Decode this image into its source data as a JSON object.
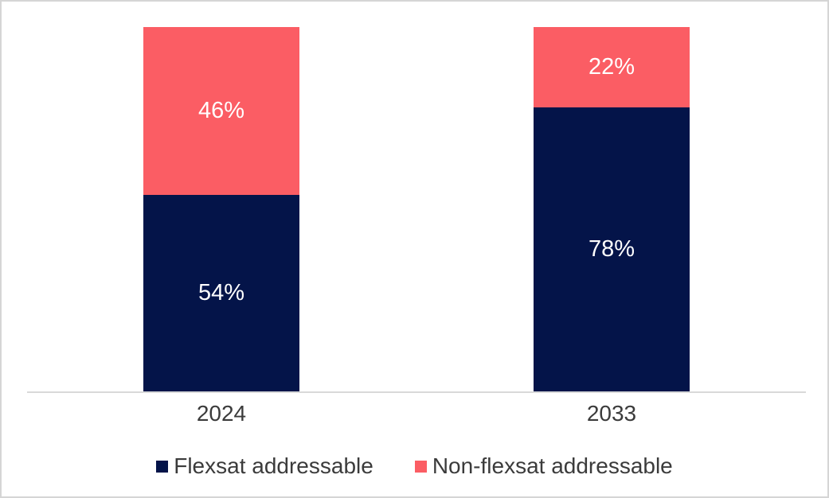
{
  "frame": {
    "background": "#FFFFFF",
    "border_color": "#D5D5D5"
  },
  "chart_data": {
    "type": "bar",
    "stacked": true,
    "orientation": "vertical",
    "title": "",
    "categories": [
      "2024",
      "2033"
    ],
    "series": [
      {
        "name": "Flexsat addressable",
        "color": "#041449",
        "values": [
          54,
          78
        ],
        "labels": [
          "54%",
          "78%"
        ]
      },
      {
        "name": "Non-flexsat addressable",
        "color": "#FB5D64",
        "values": [
          46,
          22
        ],
        "labels": [
          "46%",
          "22%"
        ]
      }
    ],
    "value_suffix": "%",
    "ylim": [
      0,
      100
    ],
    "y_axis_visible": false,
    "gridlines": false,
    "legend_position": "bottom",
    "axis_line_color": "#D9D9D9",
    "axis_label_color": "#3B3B3B",
    "legend_text_color": "#3B3B3B",
    "data_label_color": "#FFFFFF"
  }
}
